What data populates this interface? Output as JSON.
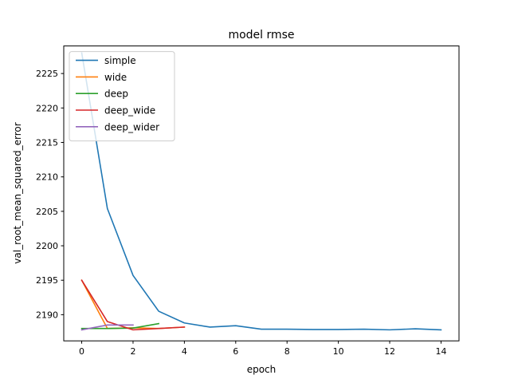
{
  "chart_data": {
    "type": "line",
    "title": "model rmse",
    "xlabel": "epoch",
    "ylabel": "val_root_mean_squared_error",
    "xlim": [
      -0.7,
      14.7
    ],
    "ylim": [
      2186.2,
      2229.0
    ],
    "xticks": [
      0,
      2,
      4,
      6,
      8,
      10,
      12,
      14
    ],
    "yticks": [
      2190,
      2195,
      2200,
      2205,
      2210,
      2215,
      2220,
      2225
    ],
    "grid": false,
    "legend": "upper left",
    "series": [
      {
        "name": "simple",
        "color": "#1f77b4",
        "x": [
          0,
          1,
          2,
          3,
          4,
          5,
          6,
          7,
          8,
          9,
          10,
          11,
          12,
          13,
          14
        ],
        "y": [
          2228.0,
          2205.4,
          2195.7,
          2190.5,
          2188.8,
          2188.2,
          2188.4,
          2187.9,
          2187.9,
          2187.85,
          2187.85,
          2187.9,
          2187.8,
          2187.95,
          2187.8
        ]
      },
      {
        "name": "wide",
        "color": "#ff7f0e",
        "x": [
          0,
          1,
          2,
          3,
          4
        ],
        "y": [
          2195.0,
          2188.0,
          2188.1,
          2188.0,
          2188.2
        ]
      },
      {
        "name": "deep",
        "color": "#2ca02c",
        "x": [
          0,
          1,
          2,
          3
        ],
        "y": [
          2188.0,
          2188.0,
          2188.05,
          2188.7
        ]
      },
      {
        "name": "deep_wide",
        "color": "#d62728",
        "x": [
          0,
          1,
          2,
          3,
          4
        ],
        "y": [
          2195.0,
          2189.0,
          2187.8,
          2188.0,
          2188.2
        ]
      },
      {
        "name": "deep_wider",
        "color": "#9467bd",
        "x": [
          0,
          1,
          2
        ],
        "y": [
          2187.8,
          2188.5,
          2188.5
        ]
      }
    ]
  }
}
